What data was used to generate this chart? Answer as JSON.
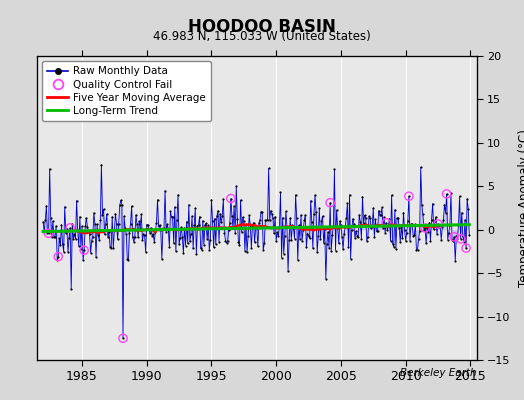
{
  "title": "HOODOO BASIN",
  "subtitle": "46.983 N, 115.033 W (United States)",
  "ylabel_right": "Temperature Anomaly (°C)",
  "watermark": "Berkeley Earth",
  "xlim": [
    1981.5,
    2015.5
  ],
  "ylim": [
    -15,
    20
  ],
  "yticks": [
    -15,
    -10,
    -5,
    0,
    5,
    10,
    15,
    20
  ],
  "xticks": [
    1985,
    1990,
    1995,
    2000,
    2005,
    2010,
    2015
  ],
  "bg_color": "#d8d8d8",
  "plot_bg_color": "#e8e8e8",
  "raw_line_color": "#0000cc",
  "raw_dot_color": "#000000",
  "qc_fail_color": "#ff44ff",
  "moving_avg_color": "#ff0000",
  "trend_color": "#00bb00",
  "shade_color": "#8888ff",
  "seed": 42,
  "n_months": 396,
  "start_year": 1982,
  "trend_slope": 0.008
}
